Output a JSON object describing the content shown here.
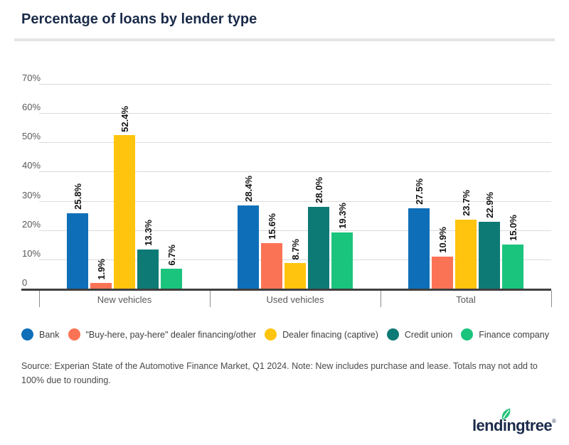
{
  "title": "Percentage of loans by lender type",
  "chart_data": {
    "type": "bar",
    "title": "Percentage of loans by lender type",
    "categories": [
      "New vehicles",
      "Used vehicles",
      "Total"
    ],
    "series": [
      {
        "name": "Bank",
        "color": "#0E6FB8",
        "values": [
          25.8,
          28.4,
          27.5
        ]
      },
      {
        "name": "\"Buy-here, pay-here\" dealer financing/other",
        "color": "#FB7355",
        "values": [
          1.9,
          15.6,
          10.9
        ]
      },
      {
        "name": "Dealer finacing (captive)",
        "color": "#FFC40D",
        "values": [
          52.4,
          8.7,
          23.7
        ]
      },
      {
        "name": "Credit union",
        "color": "#0E7A75",
        "values": [
          13.3,
          28.0,
          22.9
        ]
      },
      {
        "name": "Finance company",
        "color": "#1BC47D",
        "values": [
          6.7,
          19.3,
          15.0
        ]
      }
    ],
    "value_labels": [
      [
        "25.8%",
        "1.9%",
        "52.4%",
        "13.3%",
        "6.7%"
      ],
      [
        "28.4%",
        "15.6%",
        "8.7%",
        "28.0%",
        "19.3%"
      ],
      [
        "27.5%",
        "10.9%",
        "23.7%",
        "22.9%",
        "15.0%"
      ]
    ],
    "y_ticks": [
      "70%",
      "60%",
      "50%",
      "40%",
      "30%",
      "20%",
      "10%",
      "0"
    ],
    "ylim": [
      0,
      70
    ],
    "grid": true,
    "legend_position": "bottom",
    "xlabel": "",
    "ylabel": ""
  },
  "footer": {
    "source_note": "Source: Experian State of the Automotive Finance Market, Q1 2024. Note: New includes purchase and lease. Totals may not add to 100% due to rounding.",
    "logo_text": "lendingtree",
    "logo_mark": "®"
  }
}
